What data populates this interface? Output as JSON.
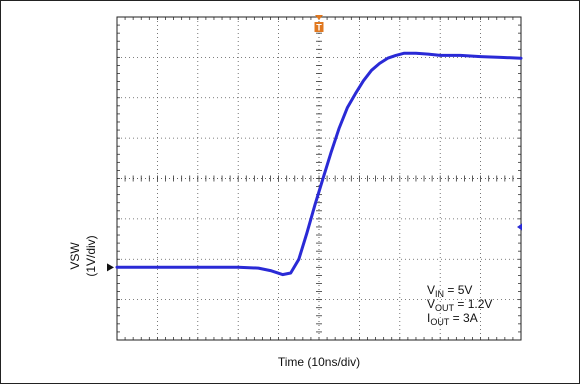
{
  "chart_data": {
    "type": "line",
    "xlabel": "Time (10ns/div)",
    "ylabel_line1": "VSW",
    "ylabel_line2": "(1V/div)",
    "x_divisions": 10,
    "y_divisions": 8,
    "x_unit": "ns",
    "x_per_div": 10,
    "y_unit": "V",
    "y_per_div": 1,
    "grid": true,
    "series": [
      {
        "name": "VSW",
        "color": "#2a2ad6",
        "x": [
          0,
          10,
          20,
          30,
          35,
          38,
          41,
          43,
          45,
          47,
          49,
          51,
          53,
          55,
          57,
          59,
          61,
          63,
          65,
          67,
          69,
          71,
          74,
          77,
          80,
          85,
          90,
          95,
          100
        ],
        "y": [
          0,
          0,
          0,
          0,
          -0.02,
          -0.08,
          -0.18,
          -0.14,
          0.2,
          0.85,
          1.55,
          2.2,
          2.85,
          3.45,
          3.95,
          4.3,
          4.62,
          4.88,
          5.05,
          5.18,
          5.25,
          5.3,
          5.3,
          5.28,
          5.25,
          5.25,
          5.22,
          5.2,
          5.18
        ]
      }
    ],
    "trigger_marker": {
      "label": "T",
      "color": "#e07820"
    },
    "ground_marker": {
      "y": 0
    },
    "right_marker": {
      "y": 1,
      "color": "#2a2ad6"
    },
    "annotations": {
      "vin": {
        "main": "V",
        "sub": "IN",
        "rest": " = 5V"
      },
      "vout": {
        "main": "V",
        "sub": "OUT",
        "rest": " = 1.2V"
      },
      "iout": {
        "main": "I",
        "sub": "OUT",
        "rest": " = 3A"
      }
    }
  }
}
